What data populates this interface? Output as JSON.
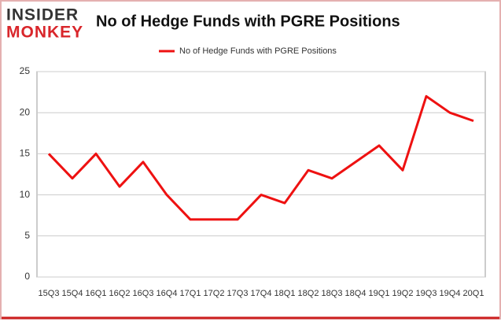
{
  "logo": {
    "top": "INSIDER",
    "bottom": "MONKEY"
  },
  "chart_data": {
    "type": "line",
    "title": "No of Hedge Funds with PGRE Positions",
    "categories": [
      "15Q3",
      "15Q4",
      "16Q1",
      "16Q2",
      "16Q3",
      "16Q4",
      "17Q1",
      "17Q2",
      "17Q3",
      "17Q4",
      "18Q1",
      "18Q2",
      "18Q3",
      "18Q4",
      "19Q1",
      "19Q2",
      "19Q3",
      "19Q4",
      "20Q1"
    ],
    "series": [
      {
        "name": "No of Hedge Funds with PGRE Positions",
        "color": "#ee1111",
        "values": [
          15,
          12,
          15,
          11,
          14,
          10,
          7,
          7,
          7,
          10,
          9,
          13,
          12,
          14,
          16,
          13,
          22,
          20,
          19
        ]
      }
    ],
    "ylim": [
      0,
      25
    ],
    "yticks": [
      0,
      5,
      10,
      15,
      20,
      25
    ],
    "grid": true,
    "legend": "top"
  }
}
